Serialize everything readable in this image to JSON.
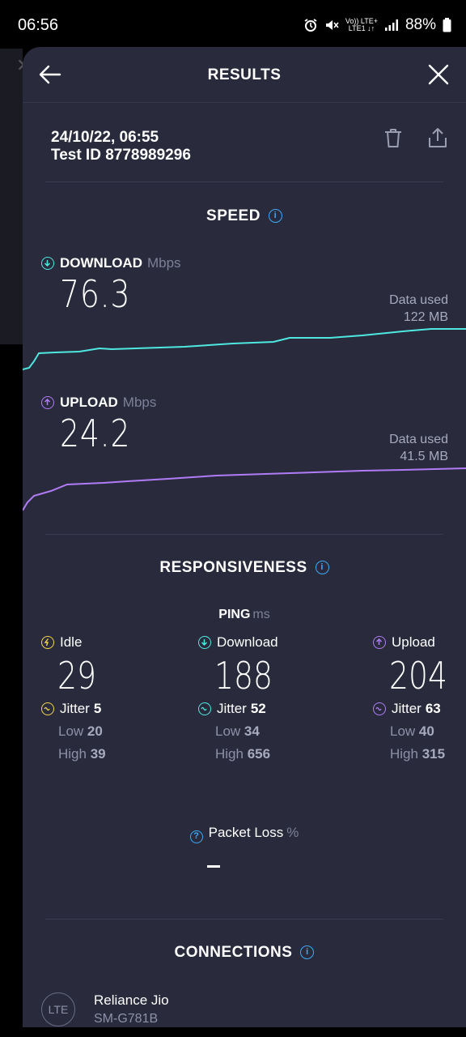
{
  "status_bar": {
    "time": "06:56",
    "battery": "88%",
    "network_top": "Vo)) LTE+",
    "network_bottom": "LTE1 ↓↑"
  },
  "header": {
    "title": "RESULTS"
  },
  "test": {
    "datetime": "24/10/22, 06:55",
    "test_id": "Test ID 8778989296"
  },
  "speed": {
    "title": "SPEED",
    "download": {
      "label": "DOWNLOAD",
      "unit": "Mbps",
      "value": "76.3",
      "data_used_label": "Data used",
      "data_used": "122 MB",
      "color": "#4ee8e0"
    },
    "upload": {
      "label": "UPLOAD",
      "unit": "Mbps",
      "value": "24.2",
      "data_used_label": "Data used",
      "data_used": "41.5 MB",
      "color": "#b07cf5"
    }
  },
  "responsiveness": {
    "title": "RESPONSIVENESS",
    "ping_label": "PING",
    "ping_unit": "ms",
    "idle": {
      "label": "Idle",
      "value": "29",
      "jitter_label": "Jitter",
      "jitter": "5",
      "low_label": "Low",
      "low": "20",
      "high_label": "High",
      "high": "39",
      "color": "#f5d54a"
    },
    "download": {
      "label": "Download",
      "value": "188",
      "jitter_label": "Jitter",
      "jitter": "52",
      "low_label": "Low",
      "low": "34",
      "high_label": "High",
      "high": "656",
      "color": "#4ee8e0"
    },
    "upload": {
      "label": "Upload",
      "value": "204",
      "jitter_label": "Jitter",
      "jitter": "63",
      "low_label": "Low",
      "low": "40",
      "high_label": "High",
      "high": "315",
      "color": "#b07cf5"
    },
    "packet_loss": {
      "label": "Packet Loss",
      "unit": "%"
    }
  },
  "connections": {
    "title": "CONNECTIONS",
    "icon_text": "LTE",
    "provider": "Reliance Jio",
    "device": "SM-G781B"
  }
}
